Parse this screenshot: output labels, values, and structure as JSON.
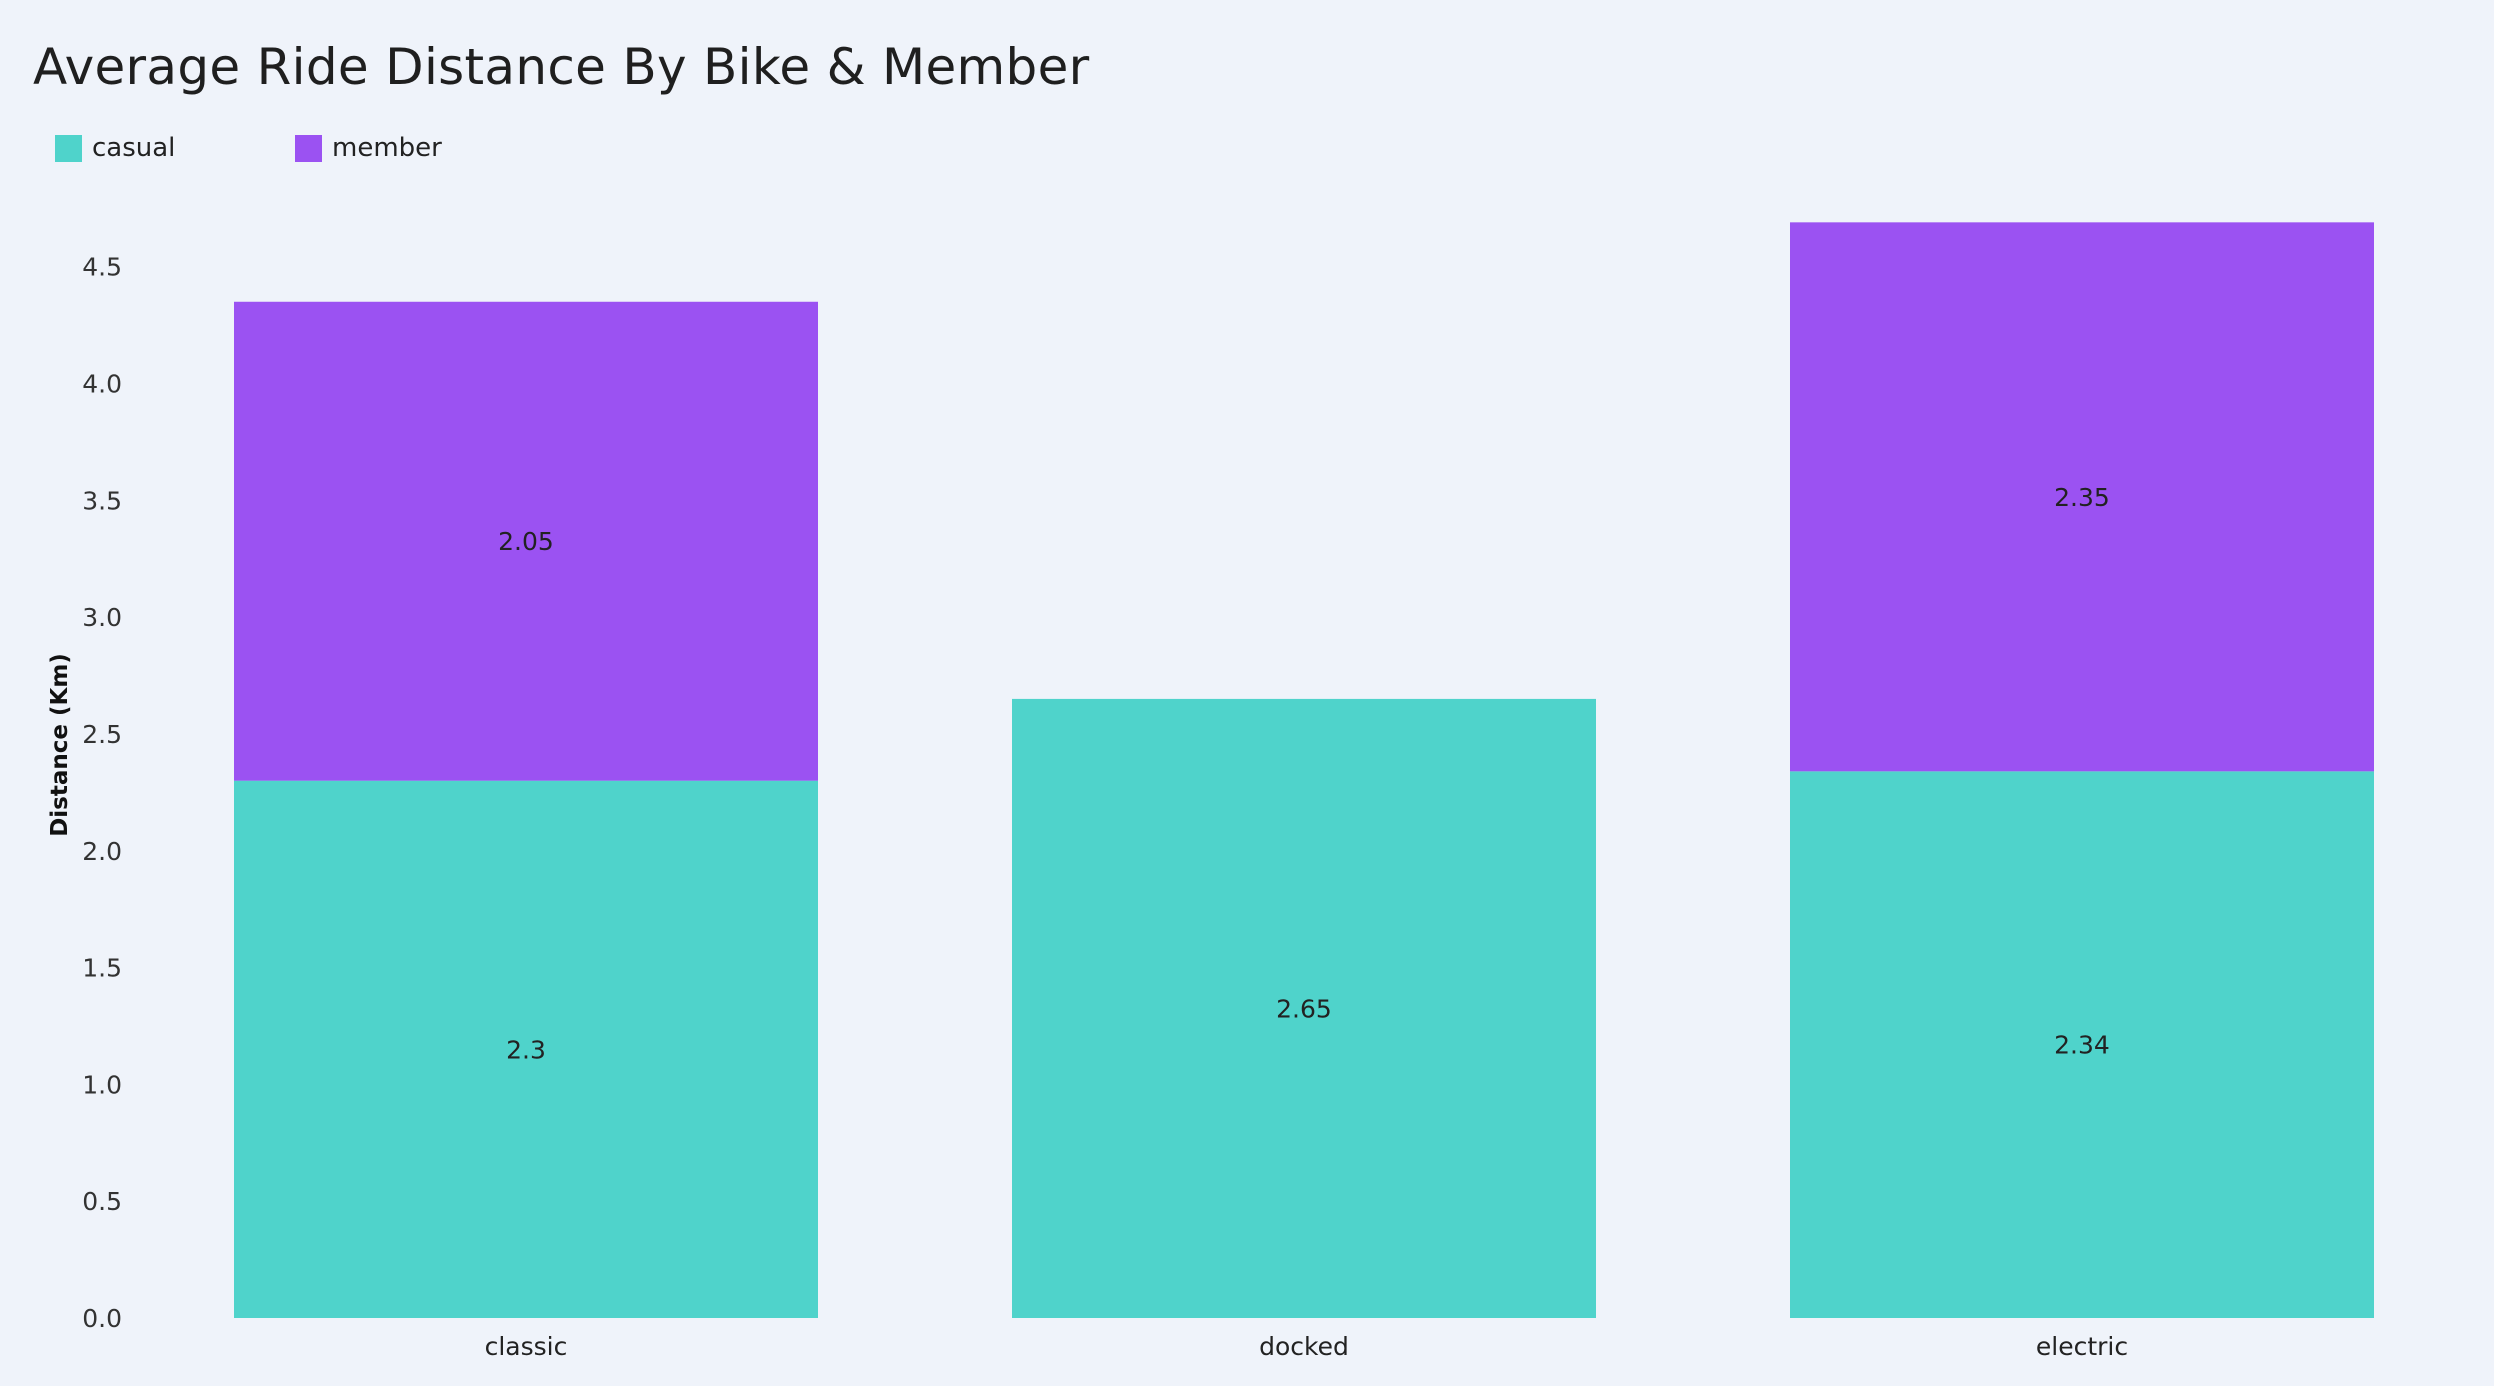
{
  "title": "Average Ride Distance By Bike & Member",
  "legend": {
    "items": [
      {
        "label": "casual",
        "color": "#4fd3cb"
      },
      {
        "label": "member",
        "color": "#9b52f2"
      }
    ]
  },
  "chart_data": {
    "type": "bar",
    "stacked": true,
    "title": "Average Ride Distance By Bike & Member",
    "xlabel": "",
    "ylabel": "Distance (Km)",
    "categories": [
      "classic",
      "docked",
      "electric"
    ],
    "series": [
      {
        "name": "casual",
        "color": "#4fd3cb",
        "values": [
          2.3,
          2.65,
          2.34
        ]
      },
      {
        "name": "member",
        "color": "#9b52f2",
        "values": [
          2.05,
          null,
          2.35
        ]
      }
    ],
    "data_labels": [
      [
        "2.3",
        "2.65",
        "2.34"
      ],
      [
        "2.05",
        "",
        "2.35"
      ]
    ],
    "yticks": [
      "0.0",
      "0.5",
      "1.0",
      "1.5",
      "2.0",
      "2.5",
      "3.0",
      "3.5",
      "4.0",
      "4.5"
    ],
    "ylim": [
      0,
      4.7
    ],
    "grid": false,
    "legend_position": "top-left"
  }
}
